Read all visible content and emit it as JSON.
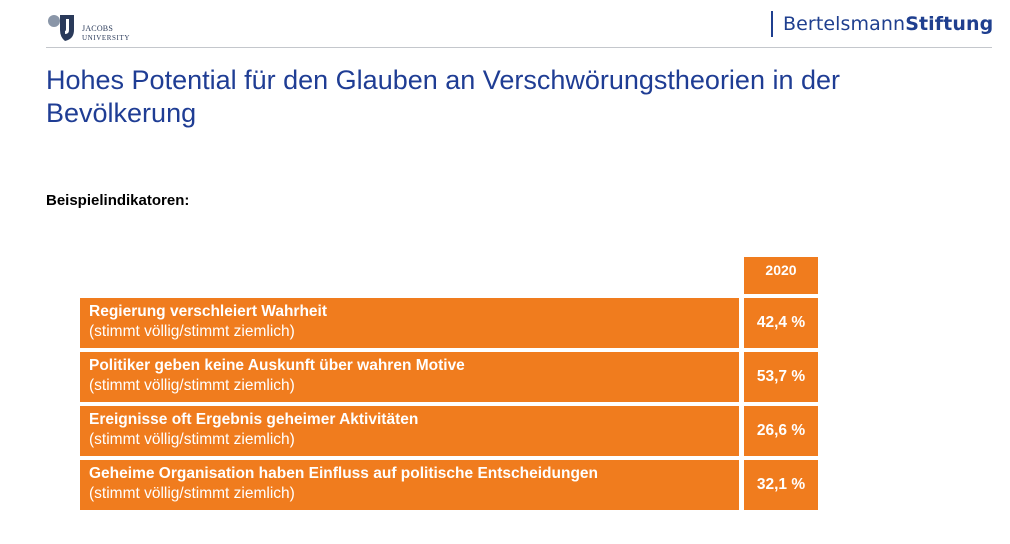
{
  "header": {
    "left_logo": {
      "line1": "JACOBS",
      "line2": "UNIVERSITY"
    },
    "right_logo": {
      "part1": "Bertelsmann",
      "part2": "Stiftung"
    }
  },
  "title": "Hohes Potential für den Glauben an Verschwörungstheorien in der Bevölkerung",
  "subtitle": "Beispielindikatoren:",
  "table": {
    "column_header": "2020",
    "rows": [
      {
        "main": "Regierung verschleiert Wahrheit",
        "sub": "(stimmt völlig/stimmt ziemlich)",
        "value": "42,4 %"
      },
      {
        "main": "Politiker geben keine Auskunft über wahren Motive",
        "sub": "(stimmt völlig/stimmt ziemlich)",
        "value": "53,7 %"
      },
      {
        "main": "Ereignisse oft Ergebnis geheimer Aktivitäten",
        "sub": "(stimmt völlig/stimmt ziemlich)",
        "value": "26,6 %"
      },
      {
        "main": "Geheime Organisation haben Einfluss auf politische Entscheidungen",
        "sub": "(stimmt völlig/stimmt ziemlich)",
        "value": "32,1 %"
      }
    ]
  },
  "colors": {
    "accent": "#f07c1e",
    "title": "#1f3d94",
    "brand": "#1f3f8f"
  }
}
